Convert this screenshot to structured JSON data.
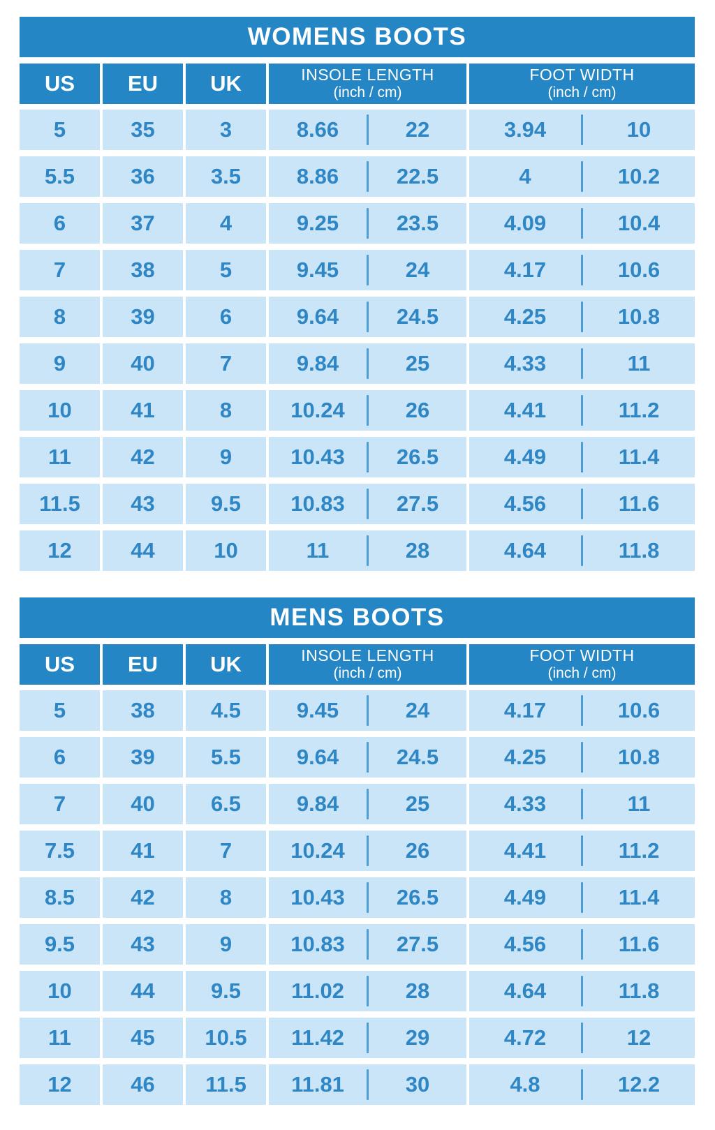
{
  "palette": {
    "header_blue": "#2486C5",
    "cell_blue": "#CAE5F7",
    "text_blue": "#2E86C4",
    "divider_blue": "#4D9DD2",
    "background": "#FFFFFF"
  },
  "chart_data": [
    {
      "type": "table",
      "title": "WOMENS BOOTS",
      "simple_columns": [
        "US",
        "EU",
        "UK"
      ],
      "group_columns": [
        {
          "label": "INSOLE LENGTH",
          "unit": "(inch / cm)"
        },
        {
          "label": "FOOT WIDTH",
          "unit": "(inch / cm)"
        }
      ],
      "rows": [
        [
          "5",
          "35",
          "3",
          "8.66",
          "22",
          "3.94",
          "10"
        ],
        [
          "5.5",
          "36",
          "3.5",
          "8.86",
          "22.5",
          "4",
          "10.2"
        ],
        [
          "6",
          "37",
          "4",
          "9.25",
          "23.5",
          "4.09",
          "10.4"
        ],
        [
          "7",
          "38",
          "5",
          "9.45",
          "24",
          "4.17",
          "10.6"
        ],
        [
          "8",
          "39",
          "6",
          "9.64",
          "24.5",
          "4.25",
          "10.8"
        ],
        [
          "9",
          "40",
          "7",
          "9.84",
          "25",
          "4.33",
          "11"
        ],
        [
          "10",
          "41",
          "8",
          "10.24",
          "26",
          "4.41",
          "11.2"
        ],
        [
          "11",
          "42",
          "9",
          "10.43",
          "26.5",
          "4.49",
          "11.4"
        ],
        [
          "11.5",
          "43",
          "9.5",
          "10.83",
          "27.5",
          "4.56",
          "11.6"
        ],
        [
          "12",
          "44",
          "10",
          "11",
          "28",
          "4.64",
          "11.8"
        ]
      ]
    },
    {
      "type": "table",
      "title": "MENS BOOTS",
      "simple_columns": [
        "US",
        "EU",
        "UK"
      ],
      "group_columns": [
        {
          "label": "INSOLE LENGTH",
          "unit": "(inch / cm)"
        },
        {
          "label": "FOOT WIDTH",
          "unit": "(inch / cm)"
        }
      ],
      "rows": [
        [
          "5",
          "38",
          "4.5",
          "9.45",
          "24",
          "4.17",
          "10.6"
        ],
        [
          "6",
          "39",
          "5.5",
          "9.64",
          "24.5",
          "4.25",
          "10.8"
        ],
        [
          "7",
          "40",
          "6.5",
          "9.84",
          "25",
          "4.33",
          "11"
        ],
        [
          "7.5",
          "41",
          "7",
          "10.24",
          "26",
          "4.41",
          "11.2"
        ],
        [
          "8.5",
          "42",
          "8",
          "10.43",
          "26.5",
          "4.49",
          "11.4"
        ],
        [
          "9.5",
          "43",
          "9",
          "10.83",
          "27.5",
          "4.56",
          "11.6"
        ],
        [
          "10",
          "44",
          "9.5",
          "11.02",
          "28",
          "4.64",
          "11.8"
        ],
        [
          "11",
          "45",
          "10.5",
          "11.42",
          "29",
          "4.72",
          "12"
        ],
        [
          "12",
          "46",
          "11.5",
          "11.81",
          "30",
          "4.8",
          "12.2"
        ]
      ]
    }
  ]
}
